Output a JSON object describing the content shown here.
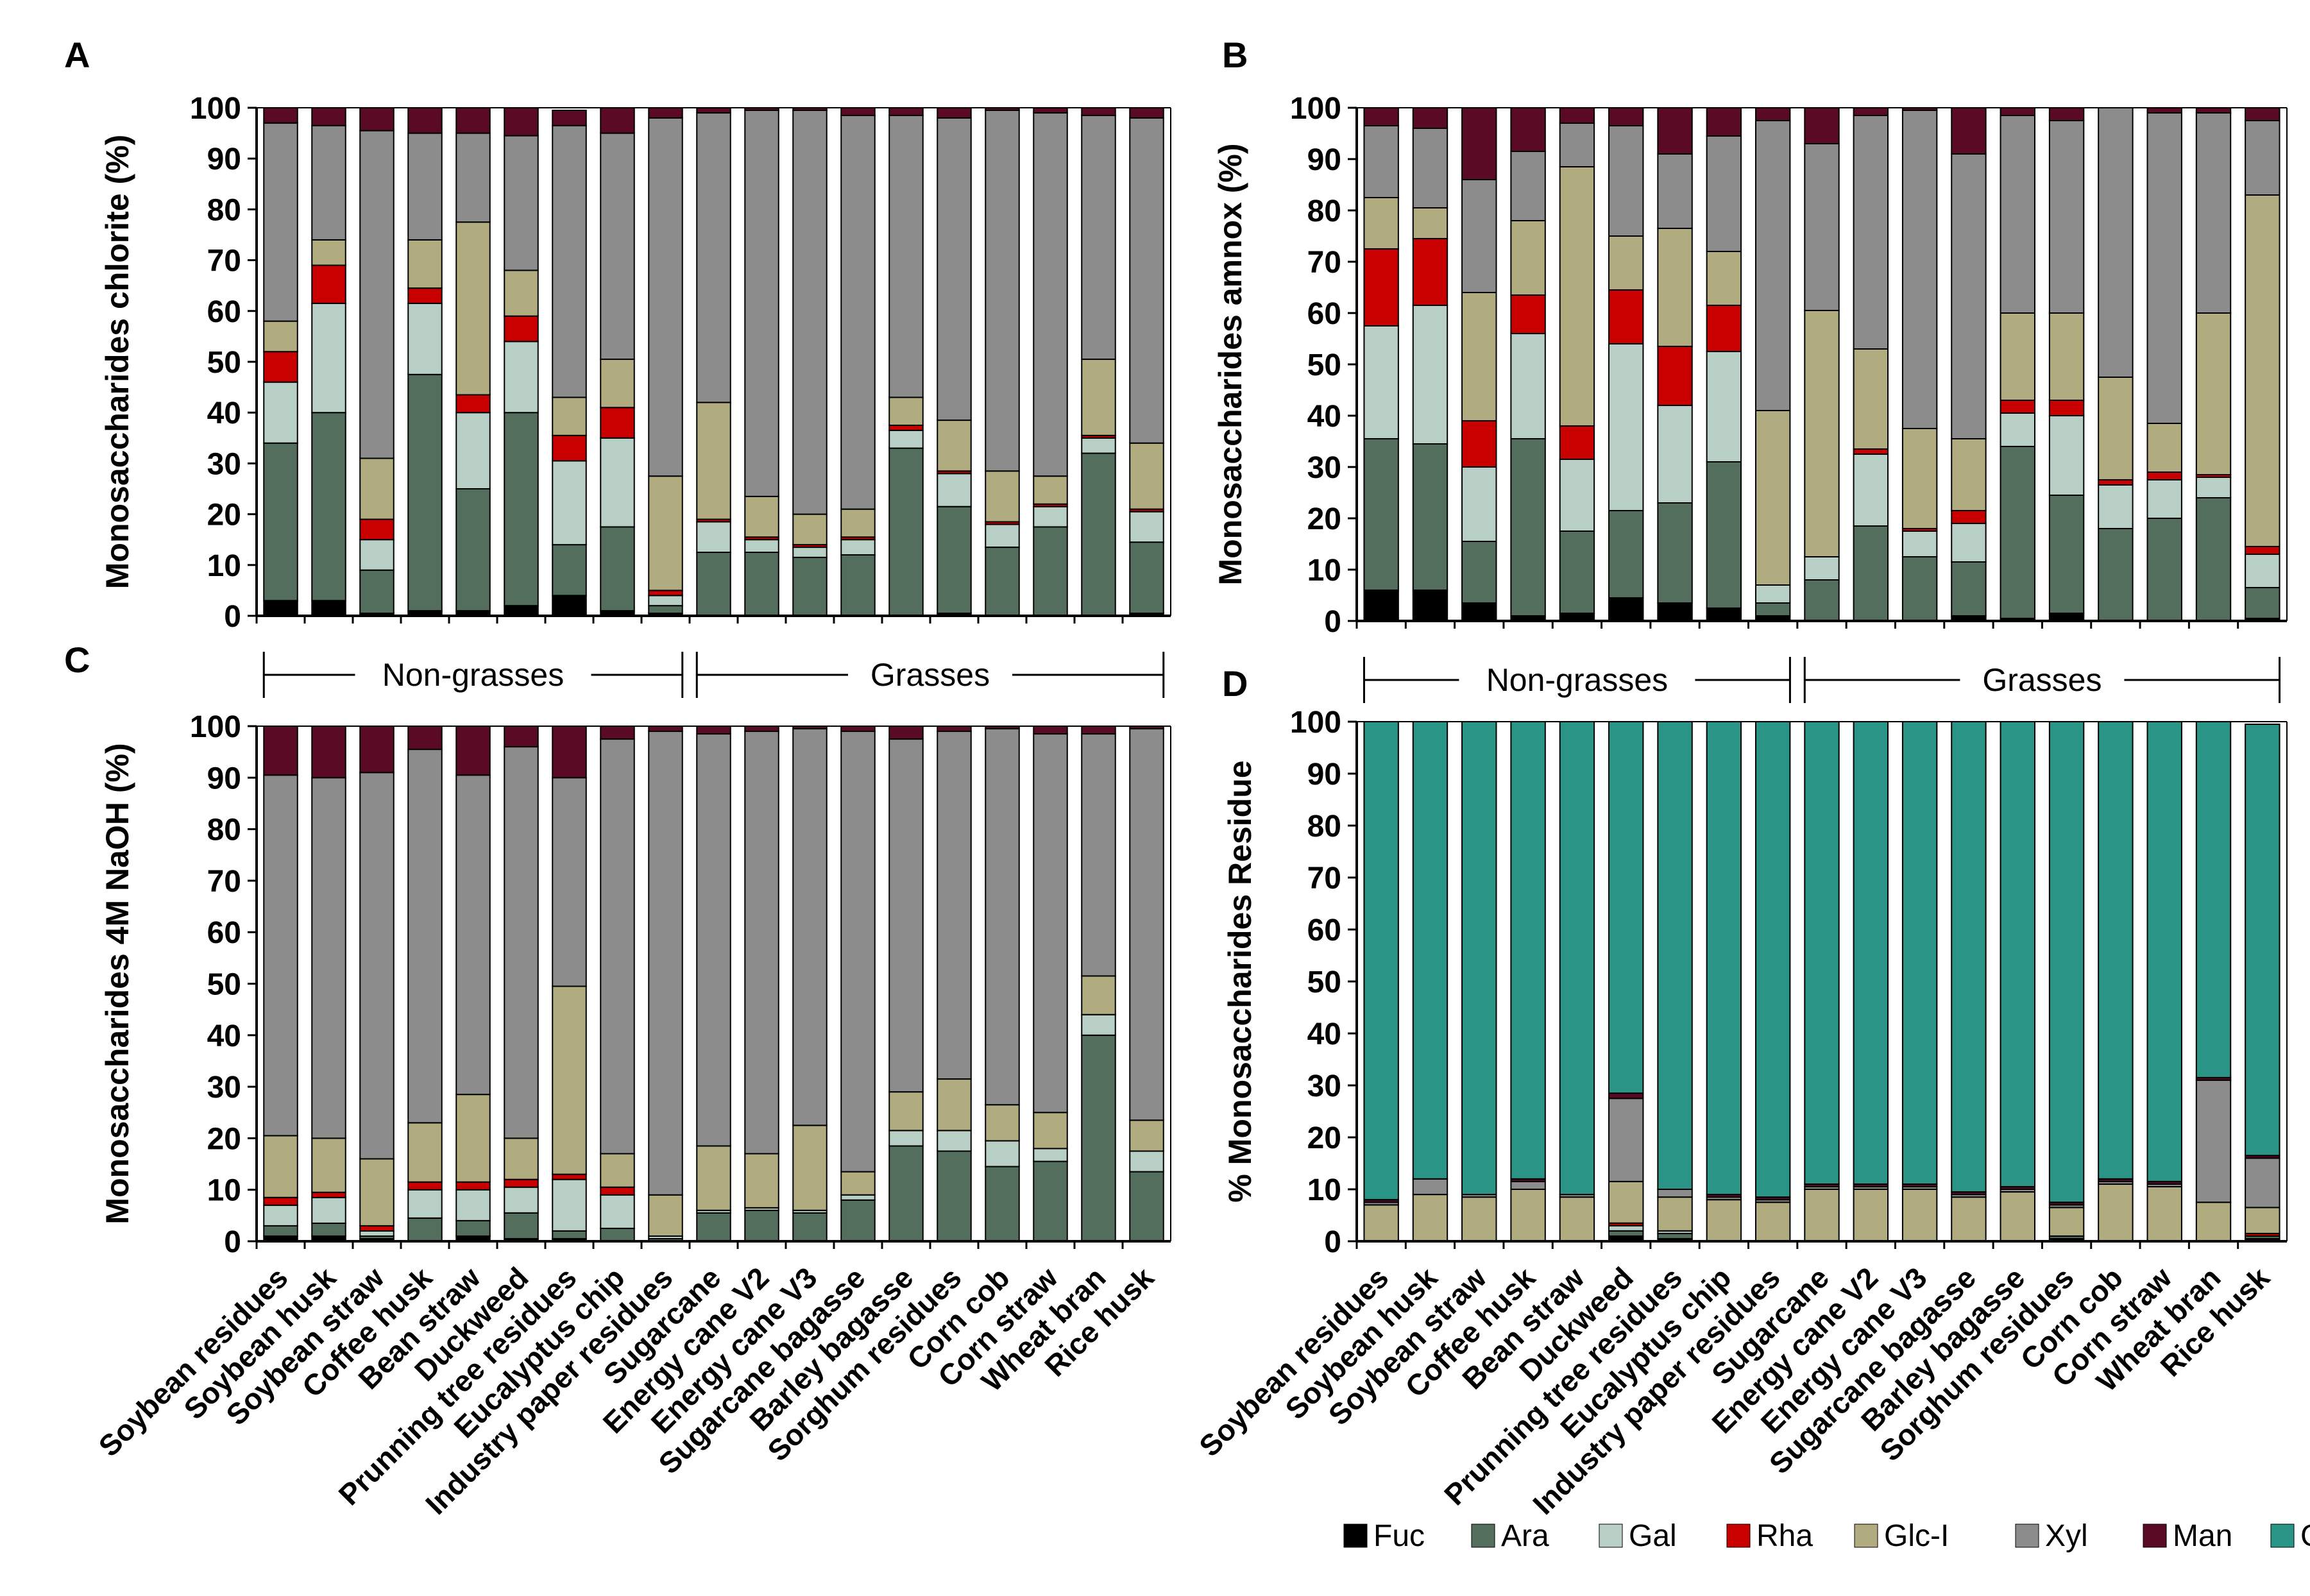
{
  "figure": {
    "group_labels": [
      "Non-grasses",
      "Grasses"
    ]
  },
  "colors": {
    "Fuc": "#000000",
    "Ara": "#536e5c",
    "Gal": "#b8cfc6",
    "Rha": "#c80000",
    "Glc-I": "#b0ac7f",
    "Xyl": "#8c8c8c",
    "Man": "#5a0a24",
    "Glc-II": "#2a9487"
  },
  "legend": [
    "Fuc",
    "Ara",
    "Gal",
    "Rha",
    "Glc-I",
    "Xyl",
    "Man",
    "Glc-II"
  ],
  "chart_data": [
    {
      "panel": "A",
      "type": "bar",
      "stacked": true,
      "ylabel": "Monosaccharides chlorite (%)",
      "ylim": [
        0,
        100
      ],
      "yticks": [
        0,
        10,
        20,
        30,
        40,
        50,
        60,
        70,
        80,
        90,
        100
      ],
      "categories": [
        "Soybean residues",
        "Soybean husk",
        "Soybean straw",
        "Coffee husk",
        "Bean straw",
        "Duckweed",
        "Prunning tree residues",
        "Eucalyptus chip",
        "Industry paper residues",
        "Sugarcane",
        "Energy cane V2",
        "Energy cane V3",
        "Sugarcane bagasse",
        "Barley bagasse",
        "Sorghum residues",
        "Corn cob",
        "Corn straw",
        "Wheat bran",
        "Rice husk"
      ],
      "series": [
        {
          "name": "Fuc",
          "values": [
            3,
            3,
            0.5,
            1,
            1,
            2,
            4,
            1,
            0.5,
            0,
            0,
            0,
            0,
            0,
            0.5,
            0,
            0,
            0,
            0.5
          ]
        },
        {
          "name": "Ara",
          "values": [
            31,
            37,
            8.5,
            46.5,
            24,
            38,
            10,
            16.5,
            1.5,
            12.5,
            12.5,
            11.5,
            12,
            33,
            21,
            13.5,
            17.5,
            32,
            14
          ]
        },
        {
          "name": "Gal",
          "values": [
            12,
            21.5,
            6,
            14,
            15,
            14,
            16.5,
            17.5,
            2,
            6,
            2.5,
            2,
            3,
            3.5,
            6.5,
            4.5,
            4,
            3,
            6
          ]
        },
        {
          "name": "Rha",
          "values": [
            6,
            7.5,
            4,
            3,
            3.5,
            5,
            5,
            6,
            1,
            0.5,
            0.5,
            0.5,
            0.5,
            1,
            0.5,
            0.5,
            0.5,
            0.5,
            0.5
          ]
        },
        {
          "name": "Glc-I",
          "values": [
            6,
            5,
            12,
            9.5,
            34,
            9,
            7.5,
            9.5,
            22.5,
            23,
            8,
            6,
            5.5,
            5.5,
            10,
            10,
            5.5,
            15,
            13
          ]
        },
        {
          "name": "Xyl",
          "values": [
            39,
            22.5,
            64.5,
            21,
            17.5,
            26.5,
            53.5,
            44.5,
            70.5,
            57,
            76,
            79.5,
            77.5,
            55.5,
            59.5,
            71,
            71.5,
            48,
            64
          ]
        },
        {
          "name": "Man",
          "values": [
            3,
            3.5,
            4.5,
            5,
            5,
            5.5,
            3,
            5,
            2,
            1,
            0.5,
            0.5,
            1.5,
            1.5,
            2,
            0.5,
            1,
            1.5,
            2
          ]
        }
      ]
    },
    {
      "panel": "B",
      "type": "bar",
      "stacked": true,
      "ylabel": "Monosaccharides amnox (%)",
      "ylim": [
        0,
        100
      ],
      "yticks": [
        0,
        10,
        20,
        30,
        40,
        50,
        60,
        70,
        80,
        90,
        100
      ],
      "categories": [
        "Soybean residues",
        "Soybean husk",
        "Soybean straw",
        "Coffee husk",
        "Bean straw",
        "Duckweed",
        "Prunning tree residues",
        "Eucalyptus chip",
        "Industry paper residues",
        "Sugarcane",
        "Energy cane V2",
        "Energy cane V3",
        "Sugarcane bagasse",
        "Barley bagasse",
        "Sorghum residues",
        "Corn cob",
        "Corn straw",
        "Wheat bran",
        "Rice husk"
      ],
      "series": [
        {
          "name": "Fuc",
          "values": [
            6,
            6,
            3.5,
            1,
            1.5,
            4.5,
            3.5,
            2.5,
            1,
            0,
            0,
            0,
            1,
            0.5,
            1.5,
            0,
            0,
            0,
            0.5
          ]
        },
        {
          "name": "Ara",
          "values": [
            29.5,
            28.5,
            12,
            34.5,
            16,
            17,
            19.5,
            28.5,
            2.5,
            8,
            18.5,
            12.5,
            10.5,
            33.5,
            23,
            18,
            20,
            24,
            6
          ]
        },
        {
          "name": "Gal",
          "values": [
            22,
            27,
            14.5,
            20.5,
            14,
            32.5,
            19,
            21.5,
            3.5,
            4.5,
            14,
            5,
            7.5,
            6.5,
            15.5,
            8.5,
            7.5,
            4,
            6.5
          ]
        },
        {
          "name": "Rha",
          "values": [
            15,
            13,
            9,
            7.5,
            6.5,
            10.5,
            11.5,
            9,
            0,
            0,
            1,
            0.5,
            2.5,
            2.5,
            3,
            1,
            1.5,
            0.5,
            1.5
          ]
        },
        {
          "name": "Glc-I",
          "values": [
            10,
            6,
            25,
            14.5,
            50.5,
            10.5,
            23,
            10.5,
            34,
            48,
            19.5,
            19.5,
            14,
            17,
            17,
            20,
            9.5,
            31.5,
            68.5
          ]
        },
        {
          "name": "Xyl",
          "values": [
            14,
            15.5,
            22,
            13.5,
            8.5,
            21.5,
            14.5,
            22.5,
            56.5,
            32.5,
            45.5,
            62,
            55.5,
            38.5,
            37.5,
            52.5,
            60.5,
            39,
            14.5
          ]
        },
        {
          "name": "Man",
          "values": [
            3.5,
            4,
            14,
            8.5,
            3,
            3.5,
            9,
            5.5,
            2.5,
            7,
            1.5,
            0.5,
            9,
            1.5,
            2.5,
            0,
            1,
            1,
            2.5
          ]
        }
      ]
    },
    {
      "panel": "C",
      "type": "bar",
      "stacked": true,
      "ylabel": "Monosaccharides 4M NaOH (%)",
      "ylim": [
        0,
        100
      ],
      "yticks": [
        0,
        10,
        20,
        30,
        40,
        50,
        60,
        70,
        80,
        90,
        100
      ],
      "categories": [
        "Soybean residues",
        "Soybean husk",
        "Soybean straw",
        "Coffee husk",
        "Bean straw",
        "Duckweed",
        "Prunning tree residues",
        "Eucalyptus chip",
        "Industry paper residues",
        "Sugarcane",
        "Energy cane V2",
        "Energy cane V3",
        "Sugarcane bagasse",
        "Barley bagasse",
        "Sorghum residues",
        "Corn cob",
        "Corn straw",
        "Wheat bran",
        "Rice husk"
      ],
      "series": [
        {
          "name": "Fuc",
          "values": [
            1,
            1,
            0.5,
            0,
            1,
            0.5,
            0.5,
            0,
            0,
            0,
            0,
            0,
            0,
            0,
            0,
            0,
            0,
            0,
            0
          ]
        },
        {
          "name": "Ara",
          "values": [
            2,
            2.5,
            0.5,
            4.5,
            3,
            5,
            1.5,
            2.5,
            0.5,
            5.5,
            6,
            5.5,
            8,
            18.5,
            17.5,
            14.5,
            15.5,
            40,
            13.5
          ]
        },
        {
          "name": "Gal",
          "values": [
            4,
            5,
            1,
            5.5,
            6,
            5,
            10,
            6.5,
            0.5,
            0.5,
            0.5,
            0.5,
            1,
            3,
            4,
            5,
            2.5,
            4,
            4
          ]
        },
        {
          "name": "Rha",
          "values": [
            1.5,
            1,
            1,
            1.5,
            1.5,
            1.5,
            1,
            1.5,
            0,
            0,
            0,
            0,
            0,
            0,
            0,
            0,
            0,
            0,
            0
          ]
        },
        {
          "name": "Glc-I",
          "values": [
            12,
            10.5,
            13,
            11.5,
            17,
            8,
            36.5,
            6.5,
            8,
            12.5,
            10.5,
            16.5,
            4.5,
            7.5,
            10,
            7,
            7,
            7.5,
            6
          ]
        },
        {
          "name": "Xyl",
          "values": [
            70,
            70,
            75,
            72.5,
            62,
            76,
            40.5,
            80.5,
            90,
            80,
            82,
            77,
            85.5,
            68.5,
            67.5,
            73,
            73.5,
            47,
            76
          ]
        },
        {
          "name": "Man",
          "values": [
            9.5,
            10,
            9,
            4.5,
            9.5,
            4,
            10,
            2.5,
            1,
            1.5,
            1,
            0.5,
            1,
            2.5,
            1,
            0.5,
            1.5,
            1.5,
            0.5
          ]
        }
      ]
    },
    {
      "panel": "D",
      "type": "bar",
      "stacked": true,
      "ylabel": "% Monosaccharides Residue",
      "ylim": [
        0,
        100
      ],
      "yticks": [
        0,
        10,
        20,
        30,
        40,
        50,
        60,
        70,
        80,
        90,
        100
      ],
      "categories": [
        "Soybean residues",
        "Soybean husk",
        "Soybean straw",
        "Coffee husk",
        "Bean straw",
        "Duckweed",
        "Prunning tree residues",
        "Eucalyptus chip",
        "Industry paper residues",
        "Sugarcane",
        "Energy cane V2",
        "Energy cane V3",
        "Sugarcane bagasse",
        "Barley bagasse",
        "Sorghum residues",
        "Corn cob",
        "Corn straw",
        "Wheat bran",
        "Rice husk"
      ],
      "series": [
        {
          "name": "Fuc",
          "values": [
            0,
            0,
            0,
            0,
            0,
            1,
            0.5,
            0,
            0,
            0,
            0,
            0,
            0,
            0,
            0.5,
            0,
            0,
            0,
            0.5
          ]
        },
        {
          "name": "Ara",
          "values": [
            0,
            0,
            0,
            0,
            0,
            1,
            1,
            0,
            0,
            0,
            0,
            0,
            0,
            0,
            0.5,
            0,
            0,
            0,
            0.5
          ]
        },
        {
          "name": "Gal",
          "values": [
            0,
            0,
            0,
            0,
            0,
            1,
            0.5,
            0,
            0,
            0,
            0,
            0,
            0,
            0,
            0,
            0,
            0,
            0,
            0
          ]
        },
        {
          "name": "Rha",
          "values": [
            0,
            0,
            0,
            0,
            0,
            0.5,
            0,
            0,
            0,
            0,
            0,
            0,
            0,
            0,
            0,
            0,
            0,
            0,
            0.5
          ]
        },
        {
          "name": "Glc-I",
          "values": [
            7,
            9,
            8.5,
            10,
            8.5,
            8,
            6.5,
            8,
            7.5,
            10,
            10,
            10,
            8.5,
            9.5,
            5.5,
            11,
            10.5,
            7.5,
            5
          ]
        },
        {
          "name": "Xyl",
          "values": [
            0.5,
            3,
            0.5,
            1.5,
            0.5,
            16,
            1.5,
            0.5,
            0.5,
            0.5,
            0.5,
            0.5,
            0.5,
            0.5,
            0.5,
            0.5,
            0.5,
            23.5,
            9.5
          ]
        },
        {
          "name": "Man",
          "values": [
            0.5,
            0,
            0,
            0.5,
            0,
            1,
            0,
            0.5,
            0.5,
            0.5,
            0.5,
            0.5,
            0.5,
            0.5,
            0.5,
            0.5,
            0.5,
            0.5,
            0.5
          ]
        },
        {
          "name": "Glc-II",
          "values": [
            92,
            88,
            91,
            88,
            91,
            71.5,
            90,
            91,
            91.5,
            89,
            89,
            89,
            90.5,
            89.5,
            92.5,
            88,
            88.5,
            68.5,
            83
          ]
        }
      ]
    }
  ]
}
